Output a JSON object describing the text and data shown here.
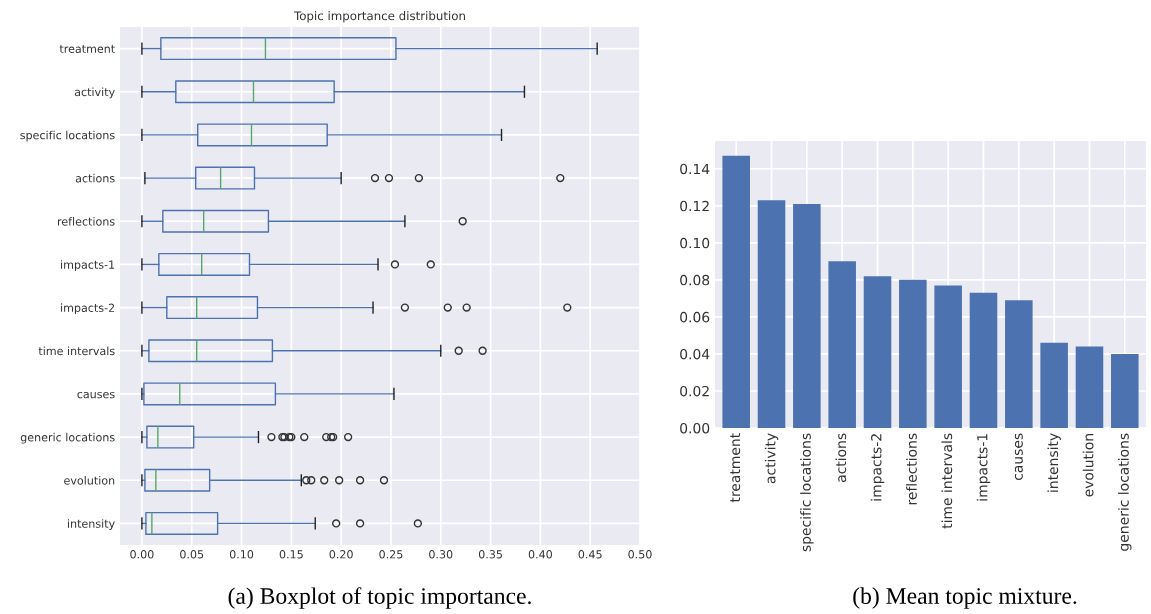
{
  "chart_data": [
    {
      "type": "box",
      "title": "Topic importance distribution",
      "orientation": "horizontal",
      "grid": true,
      "categories": [
        "treatment",
        "activity",
        "specific locations",
        "actions",
        "reflections",
        "impacts-1",
        "impacts-2",
        "time intervals",
        "causes",
        "generic locations",
        "evolution",
        "intensity"
      ],
      "xlim": [
        -0.022,
        0.5
      ],
      "xticks": [
        {
          "value": 0,
          "label": "0.00"
        },
        {
          "value": 0.05,
          "label": "0.05"
        },
        {
          "value": 0.1,
          "label": "0.10"
        },
        {
          "value": 0.15,
          "label": "0.15"
        },
        {
          "value": 0.2,
          "label": "0.20"
        },
        {
          "value": 0.25,
          "label": "0.25"
        },
        {
          "value": 0.3,
          "label": "0.30"
        },
        {
          "value": 0.35,
          "label": "0.35"
        },
        {
          "value": 0.4,
          "label": "0.40"
        },
        {
          "value": 0.45,
          "label": "0.45"
        },
        {
          "value": 0.5,
          "label": "0.50"
        }
      ],
      "series": [
        {
          "color": "#4c72b0",
          "boxes": [
            {
              "low": 0,
              "q1": 0.019,
              "median": 0.124,
              "q3": 0.255,
              "high": 0.457
            },
            {
              "low": 0,
              "q1": 0.034,
              "median": 0.112,
              "q3": 0.193,
              "high": 0.384
            },
            {
              "low": 0,
              "q1": 0.056,
              "median": 0.11,
              "q3": 0.186,
              "high": 0.361
            },
            {
              "low": 0.003,
              "q1": 0.054,
              "median": 0.079,
              "q3": 0.113,
              "high": 0.2,
              "outliers": [
                0.234,
                0.248,
                0.278,
                0.42
              ]
            },
            {
              "low": 0,
              "q1": 0.021,
              "median": 0.062,
              "q3": 0.127,
              "high": 0.264,
              "outliers": [
                0.322
              ]
            },
            {
              "low": 0,
              "q1": 0.017,
              "median": 0.06,
              "q3": 0.108,
              "high": 0.237,
              "outliers": [
                0.254,
                0.29
              ]
            },
            {
              "low": 0,
              "q1": 0.025,
              "median": 0.055,
              "q3": 0.116,
              "high": 0.232,
              "outliers": [
                0.264,
                0.307,
                0.326,
                0.427
              ]
            },
            {
              "low": 0,
              "q1": 0.007,
              "median": 0.055,
              "q3": 0.131,
              "high": 0.3,
              "outliers": [
                0.318,
                0.342
              ]
            },
            {
              "low": 0,
              "q1": 0.002,
              "median": 0.038,
              "q3": 0.134,
              "high": 0.253
            },
            {
              "low": 0,
              "q1": 0.005,
              "median": 0.016,
              "q3": 0.052,
              "high": 0.117,
              "outliers": [
                0.13,
                0.141,
                0.143,
                0.148,
                0.15,
                0.163,
                0.185,
                0.19,
                0.192,
                0.207
              ]
            },
            {
              "low": 0,
              "q1": 0.003,
              "median": 0.014,
              "q3": 0.068,
              "high": 0.16,
              "outliers": [
                0.165,
                0.17,
                0.183,
                0.198,
                0.219,
                0.243
              ]
            },
            {
              "low": 0,
              "q1": 0.004,
              "median": 0.01,
              "q3": 0.076,
              "high": 0.174,
              "outliers": [
                0.195,
                0.219,
                0.277
              ]
            }
          ]
        }
      ],
      "annotations": [
        "(a) Boxplot of topic importance."
      ]
    },
    {
      "type": "bar",
      "grid": true,
      "categories": [
        "treatment",
        "activity",
        "specific locations",
        "actions",
        "impacts-2",
        "reflections",
        "time intervals",
        "impacts-1",
        "causes",
        "intensity",
        "evolution",
        "generic locations"
      ],
      "values": [
        0.147,
        0.123,
        0.121,
        0.09,
        0.082,
        0.08,
        0.077,
        0.073,
        0.069,
        0.046,
        0.044,
        0.04
      ],
      "color": "#4c72b0",
      "ylim": [
        0,
        0.155
      ],
      "yticks": [
        {
          "value": 0,
          "label": "0.00"
        },
        {
          "value": 0.02,
          "label": "0.02"
        },
        {
          "value": 0.04,
          "label": "0.04"
        },
        {
          "value": 0.06,
          "label": "0.06"
        },
        {
          "value": 0.08,
          "label": "0.08"
        },
        {
          "value": 0.1,
          "label": "0.10"
        },
        {
          "value": 0.12,
          "label": "0.12"
        },
        {
          "value": 0.14,
          "label": "0.14"
        }
      ],
      "annotations": [
        "(b) Mean topic mixture."
      ]
    }
  ]
}
